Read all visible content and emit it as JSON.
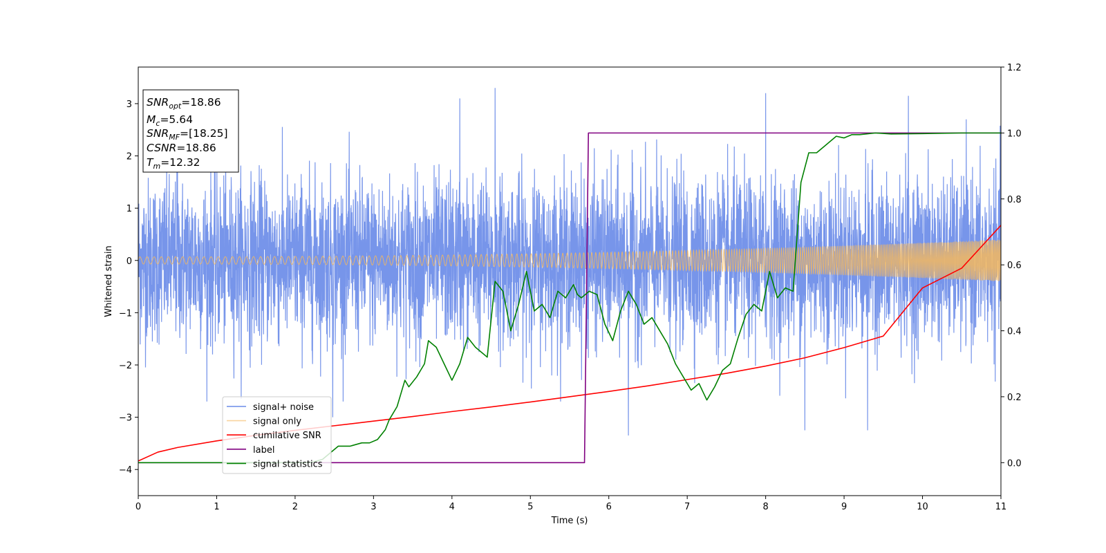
{
  "chart_data": {
    "type": "line",
    "xlabel": "Time (s)",
    "ylabel": "Whitened strain",
    "xlim": [
      0,
      11
    ],
    "ylim": [
      -4.5,
      3.7
    ],
    "y2lim": [
      -0.1,
      1.2
    ],
    "xticks": [
      "0",
      "1",
      "2",
      "3",
      "4",
      "5",
      "6",
      "7",
      "8",
      "9",
      "10",
      "11"
    ],
    "yticks": [
      "−4",
      "−3",
      "−2",
      "−1",
      "0",
      "1",
      "2",
      "3"
    ],
    "y2ticks": [
      "0.0",
      "0.2",
      "0.4",
      "0.6",
      "0.8",
      "1.0",
      "1.2"
    ],
    "legend_position": "lower-left",
    "grid": false,
    "stats_box": {
      "lines": [
        {
          "var": "SNR",
          "sub": "opt",
          "value": "=18.86"
        },
        {
          "var": "M",
          "sub": "c",
          "value": "=5.64"
        },
        {
          "var": "SNR",
          "sub": "MF",
          "value": "=[18.25]"
        },
        {
          "var": "CSNR",
          "sub": "",
          "value": "=18.86"
        },
        {
          "var": "T",
          "sub": "m",
          "value": "=12.32"
        }
      ]
    },
    "series": [
      {
        "name": "signal+ noise",
        "axis": "left",
        "color": "#6b8ce8",
        "kind": "noise",
        "std": 0.78,
        "peaks": [
          [
            0.5,
            2.45
          ],
          [
            2.48,
            -3.0
          ],
          [
            4.1,
            3.1
          ],
          [
            4.55,
            3.3
          ],
          [
            6.25,
            -3.35
          ],
          [
            8.0,
            3.2
          ],
          [
            8.5,
            -3.25
          ],
          [
            9.3,
            -3.25
          ],
          [
            9.82,
            3.15
          ]
        ]
      },
      {
        "name": "signal only",
        "axis": "left",
        "color": "#f5b85e",
        "kind": "chirp",
        "amp_start": 0.07,
        "amp_end": 0.4
      },
      {
        "name": "cumilative SNR",
        "axis": "right",
        "color": "#ff0000",
        "x": [
          0,
          0.25,
          0.5,
          1,
          1.5,
          2,
          2.5,
          3,
          3.5,
          4,
          4.5,
          5,
          5.5,
          6,
          6.5,
          7,
          7.5,
          8,
          8.5,
          9,
          9.5,
          10,
          10.5,
          11
        ],
        "y": [
          0.005,
          0.032,
          0.046,
          0.066,
          0.083,
          0.098,
          0.112,
          0.126,
          0.14,
          0.155,
          0.169,
          0.184,
          0.2,
          0.216,
          0.233,
          0.252,
          0.271,
          0.293,
          0.318,
          0.349,
          0.384,
          0.53,
          0.59,
          0.72
        ]
      },
      {
        "name": "label",
        "axis": "right",
        "color": "#800080",
        "x": [
          0,
          5.69,
          5.74,
          11
        ],
        "y": [
          0,
          0,
          1,
          1
        ]
      },
      {
        "name": "signal statistics",
        "axis": "right",
        "color": "#008000",
        "x": [
          0,
          2.0,
          2.2,
          2.35,
          2.45,
          2.55,
          2.7,
          2.85,
          2.95,
          3.05,
          3.15,
          3.2,
          3.3,
          3.4,
          3.45,
          3.55,
          3.6,
          3.65,
          3.7,
          3.8,
          3.9,
          4.0,
          4.1,
          4.2,
          4.3,
          4.4,
          4.45,
          4.55,
          4.65,
          4.75,
          4.85,
          4.95,
          5.05,
          5.15,
          5.25,
          5.35,
          5.45,
          5.55,
          5.6,
          5.65,
          5.75,
          5.85,
          5.95,
          6.05,
          6.15,
          6.25,
          6.35,
          6.45,
          6.55,
          6.65,
          6.75,
          6.85,
          6.95,
          7.05,
          7.15,
          7.25,
          7.35,
          7.45,
          7.55,
          7.65,
          7.75,
          7.85,
          7.95,
          8.05,
          8.15,
          8.25,
          8.35,
          8.45,
          8.55,
          8.65,
          8.75,
          8.9,
          9.0,
          9.1,
          9.2,
          9.4,
          9.6,
          10.0,
          10.5,
          11
        ],
        "y": [
          0,
          0.0,
          0.0,
          0.01,
          0.03,
          0.05,
          0.05,
          0.06,
          0.06,
          0.07,
          0.1,
          0.13,
          0.17,
          0.25,
          0.23,
          0.26,
          0.28,
          0.3,
          0.37,
          0.35,
          0.3,
          0.25,
          0.3,
          0.38,
          0.35,
          0.33,
          0.32,
          0.55,
          0.52,
          0.4,
          0.48,
          0.58,
          0.46,
          0.48,
          0.44,
          0.52,
          0.5,
          0.54,
          0.51,
          0.5,
          0.52,
          0.51,
          0.42,
          0.37,
          0.46,
          0.52,
          0.48,
          0.42,
          0.44,
          0.4,
          0.36,
          0.3,
          0.26,
          0.22,
          0.24,
          0.19,
          0.23,
          0.28,
          0.3,
          0.38,
          0.45,
          0.48,
          0.46,
          0.58,
          0.5,
          0.53,
          0.52,
          0.85,
          0.94,
          0.94,
          0.96,
          0.99,
          0.985,
          0.995,
          0.995,
          1.0,
          0.997,
          0.998,
          1.0,
          1.0
        ]
      }
    ]
  }
}
